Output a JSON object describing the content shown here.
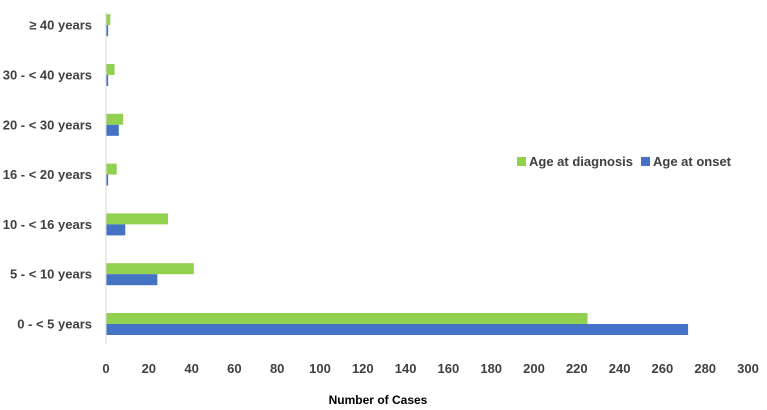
{
  "chart_data": {
    "type": "bar",
    "orientation": "horizontal",
    "categories": [
      "0 - < 5 years",
      "5 - < 10 years",
      "10 - < 16 years",
      "16 - < 20 years",
      "20 - < 30 years",
      "30 - < 40 years",
      "≥ 40 years"
    ],
    "series": [
      {
        "name": "Age at diagnosis",
        "color": "#92d050",
        "values": [
          225,
          41,
          29,
          5,
          8,
          4,
          2
        ]
      },
      {
        "name": "Age at onset",
        "color": "#4472c4",
        "values": [
          272,
          24,
          9,
          1,
          6,
          1,
          1
        ]
      }
    ],
    "xlabel": "Number of Cases",
    "ylabel": "",
    "xlim": [
      0,
      300
    ],
    "xticks": [
      "0",
      "20",
      "40",
      "60",
      "80",
      "100",
      "120",
      "140",
      "160",
      "180",
      "200",
      "220",
      "240",
      "260",
      "280",
      "300"
    ],
    "grid": false,
    "legend_position": "right"
  }
}
